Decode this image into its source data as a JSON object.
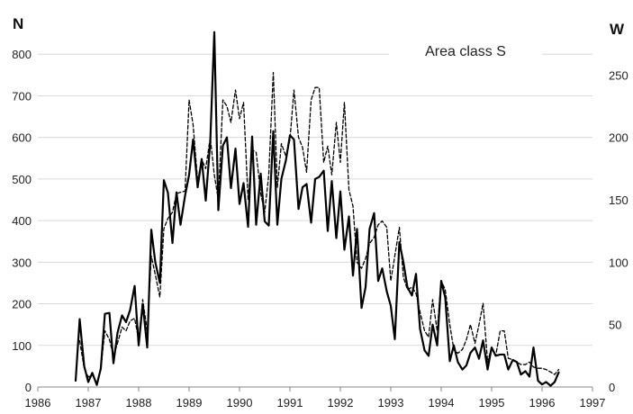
{
  "chart_data": {
    "type": "line",
    "title": "",
    "annotation": "Area class S",
    "xlabel": "",
    "ylabel_left": "N",
    "ylabel_right": "W",
    "xlim": [
      1986,
      1997
    ],
    "ylim_left": [
      0,
      900
    ],
    "ylim_right": [
      0,
      300
    ],
    "x_ticks": [
      "1986",
      "1987",
      "1988",
      "1989",
      "1990",
      "1991",
      "1992",
      "1993",
      "1994",
      "1995",
      "1996",
      "1997"
    ],
    "y_left_ticks": [
      "0",
      "100",
      "200",
      "300",
      "400",
      "500",
      "600",
      "700",
      "800"
    ],
    "y_right_ticks": [
      "0",
      "50",
      "100",
      "150",
      "200",
      "250"
    ],
    "grid": "horizontal",
    "legend": "none",
    "colors": {
      "line": "#000000",
      "grid": "#d9d9d9",
      "axis": "#888888"
    },
    "series": [
      {
        "axis": "left",
        "style": "solid",
        "points": [
          [
            1986.75,
            15
          ],
          [
            1986.83,
            163
          ],
          [
            1986.92,
            50
          ],
          [
            1987.0,
            12
          ],
          [
            1987.08,
            34
          ],
          [
            1987.17,
            5
          ],
          [
            1987.25,
            45
          ],
          [
            1987.33,
            176
          ],
          [
            1987.42,
            178
          ],
          [
            1987.5,
            57
          ],
          [
            1987.58,
            130
          ],
          [
            1987.67,
            172
          ],
          [
            1987.75,
            156
          ],
          [
            1987.83,
            185
          ],
          [
            1987.92,
            243
          ],
          [
            1988.0,
            100
          ],
          [
            1988.08,
            200
          ],
          [
            1988.17,
            95
          ],
          [
            1988.25,
            378
          ],
          [
            1988.33,
            300
          ],
          [
            1988.42,
            250
          ],
          [
            1988.5,
            497
          ],
          [
            1988.58,
            467
          ],
          [
            1988.67,
            346
          ],
          [
            1988.75,
            468
          ],
          [
            1988.83,
            390
          ],
          [
            1988.92,
            460
          ],
          [
            1989.0,
            510
          ],
          [
            1989.08,
            595
          ],
          [
            1989.17,
            480
          ],
          [
            1989.25,
            548
          ],
          [
            1989.33,
            448
          ],
          [
            1989.42,
            590
          ],
          [
            1989.5,
            853
          ],
          [
            1989.58,
            425
          ],
          [
            1989.67,
            580
          ],
          [
            1989.75,
            600
          ],
          [
            1989.83,
            478
          ],
          [
            1989.92,
            573
          ],
          [
            1990.0,
            440
          ],
          [
            1990.08,
            490
          ],
          [
            1990.17,
            385
          ],
          [
            1990.25,
            602
          ],
          [
            1990.33,
            390
          ],
          [
            1990.42,
            513
          ],
          [
            1990.5,
            398
          ],
          [
            1990.58,
            388
          ],
          [
            1990.67,
            615
          ],
          [
            1990.75,
            390
          ],
          [
            1990.83,
            500
          ],
          [
            1990.92,
            545
          ],
          [
            1991.0,
            605
          ],
          [
            1991.08,
            595
          ],
          [
            1991.17,
            428
          ],
          [
            1991.25,
            480
          ],
          [
            1991.33,
            488
          ],
          [
            1991.42,
            395
          ],
          [
            1991.5,
            500
          ],
          [
            1991.58,
            505
          ],
          [
            1991.67,
            520
          ],
          [
            1991.75,
            375
          ],
          [
            1991.83,
            495
          ],
          [
            1991.92,
            358
          ],
          [
            1992.0,
            470
          ],
          [
            1992.08,
            330
          ],
          [
            1992.17,
            410
          ],
          [
            1992.25,
            268
          ],
          [
            1992.33,
            380
          ],
          [
            1992.42,
            190
          ],
          [
            1992.5,
            240
          ],
          [
            1992.58,
            380
          ],
          [
            1992.67,
            418
          ],
          [
            1992.75,
            255
          ],
          [
            1992.83,
            285
          ],
          [
            1992.92,
            230
          ],
          [
            1993.0,
            195
          ],
          [
            1993.08,
            115
          ],
          [
            1993.17,
            348
          ],
          [
            1993.25,
            300
          ],
          [
            1993.33,
            240
          ],
          [
            1993.42,
            220
          ],
          [
            1993.5,
            272
          ],
          [
            1993.58,
            140
          ],
          [
            1993.67,
            88
          ],
          [
            1993.75,
            75
          ],
          [
            1993.83,
            150
          ],
          [
            1993.92,
            100
          ],
          [
            1994.0,
            255
          ],
          [
            1994.08,
            215
          ],
          [
            1994.17,
            62
          ],
          [
            1994.25,
            100
          ],
          [
            1994.33,
            60
          ],
          [
            1994.42,
            42
          ],
          [
            1994.5,
            52
          ],
          [
            1994.58,
            82
          ],
          [
            1994.67,
            95
          ],
          [
            1994.75,
            68
          ],
          [
            1994.83,
            112
          ],
          [
            1994.92,
            42
          ],
          [
            1995.0,
            95
          ],
          [
            1995.08,
            75
          ],
          [
            1995.17,
            78
          ],
          [
            1995.25,
            78
          ],
          [
            1995.33,
            42
          ],
          [
            1995.42,
            65
          ],
          [
            1995.5,
            60
          ],
          [
            1995.58,
            30
          ],
          [
            1995.67,
            38
          ],
          [
            1995.75,
            25
          ],
          [
            1995.83,
            95
          ],
          [
            1995.92,
            15
          ],
          [
            1996.0,
            6
          ],
          [
            1996.08,
            12
          ],
          [
            1996.17,
            3
          ],
          [
            1996.25,
            12
          ],
          [
            1996.33,
            35
          ]
        ]
      },
      {
        "axis": "right",
        "style": "dashed",
        "points": [
          [
            1986.83,
            37
          ],
          [
            1986.92,
            15
          ],
          [
            1987.0,
            8
          ],
          [
            1987.08,
            10
          ],
          [
            1987.17,
            2
          ],
          [
            1987.25,
            15
          ],
          [
            1987.33,
            45
          ],
          [
            1987.42,
            38
          ],
          [
            1987.5,
            25
          ],
          [
            1987.58,
            35
          ],
          [
            1987.67,
            48
          ],
          [
            1987.75,
            45
          ],
          [
            1987.83,
            53
          ],
          [
            1987.92,
            55
          ],
          [
            1988.0,
            38
          ],
          [
            1988.08,
            70
          ],
          [
            1988.17,
            45
          ],
          [
            1988.25,
            105
          ],
          [
            1988.33,
            90
          ],
          [
            1988.42,
            72
          ],
          [
            1988.5,
            127
          ],
          [
            1988.58,
            135
          ],
          [
            1988.67,
            140
          ],
          [
            1988.75,
            155
          ],
          [
            1988.83,
            156
          ],
          [
            1988.92,
            157
          ],
          [
            1989.0,
            230
          ],
          [
            1989.08,
            210
          ],
          [
            1989.17,
            165
          ],
          [
            1989.25,
            182
          ],
          [
            1989.33,
            175
          ],
          [
            1989.42,
            200
          ],
          [
            1989.5,
            170
          ],
          [
            1989.58,
            150
          ],
          [
            1989.67,
            230
          ],
          [
            1989.75,
            225
          ],
          [
            1989.83,
            212
          ],
          [
            1989.92,
            238
          ],
          [
            1990.0,
            215
          ],
          [
            1990.08,
            228
          ],
          [
            1990.17,
            150
          ],
          [
            1990.25,
            190
          ],
          [
            1990.33,
            188
          ],
          [
            1990.42,
            155
          ],
          [
            1990.5,
            140
          ],
          [
            1990.58,
            170
          ],
          [
            1990.67,
            252
          ],
          [
            1990.75,
            160
          ],
          [
            1990.83,
            195
          ],
          [
            1990.92,
            185
          ],
          [
            1991.0,
            198
          ],
          [
            1991.08,
            238
          ],
          [
            1991.17,
            200
          ],
          [
            1991.25,
            192
          ],
          [
            1991.33,
            172
          ],
          [
            1991.42,
            230
          ],
          [
            1991.5,
            240
          ],
          [
            1991.58,
            240
          ],
          [
            1991.67,
            180
          ],
          [
            1991.75,
            193
          ],
          [
            1991.83,
            170
          ],
          [
            1991.92,
            212
          ],
          [
            1992.0,
            180
          ],
          [
            1992.08,
            228
          ],
          [
            1992.17,
            158
          ],
          [
            1992.25,
            145
          ],
          [
            1992.33,
            100
          ],
          [
            1992.42,
            95
          ],
          [
            1992.5,
            103
          ],
          [
            1992.58,
            115
          ],
          [
            1992.67,
            120
          ],
          [
            1992.75,
            130
          ],
          [
            1992.83,
            133
          ],
          [
            1992.92,
            128
          ],
          [
            1993.0,
            85
          ],
          [
            1993.08,
            105
          ],
          [
            1993.17,
            128
          ],
          [
            1993.25,
            88
          ],
          [
            1993.33,
            78
          ],
          [
            1993.42,
            80
          ],
          [
            1993.5,
            75
          ],
          [
            1993.58,
            60
          ],
          [
            1993.67,
            45
          ],
          [
            1993.75,
            40
          ],
          [
            1993.83,
            70
          ],
          [
            1993.92,
            45
          ],
          [
            1994.0,
            85
          ],
          [
            1994.08,
            78
          ],
          [
            1994.17,
            50
          ],
          [
            1994.25,
            30
          ],
          [
            1994.33,
            27
          ],
          [
            1994.42,
            30
          ],
          [
            1994.5,
            38
          ],
          [
            1994.58,
            50
          ],
          [
            1994.67,
            35
          ],
          [
            1994.75,
            50
          ],
          [
            1994.83,
            67
          ],
          [
            1994.92,
            20
          ],
          [
            1995.0,
            32
          ],
          [
            1995.08,
            25
          ],
          [
            1995.17,
            45
          ],
          [
            1995.25,
            45
          ],
          [
            1995.33,
            23
          ],
          [
            1995.42,
            22
          ],
          [
            1995.5,
            20
          ],
          [
            1995.58,
            18
          ],
          [
            1995.67,
            18
          ],
          [
            1995.75,
            20
          ],
          [
            1995.83,
            16
          ],
          [
            1995.92,
            15
          ],
          [
            1996.0,
            15
          ],
          [
            1996.08,
            14
          ],
          [
            1996.17,
            12
          ],
          [
            1996.25,
            10
          ],
          [
            1996.33,
            14
          ]
        ]
      }
    ]
  }
}
